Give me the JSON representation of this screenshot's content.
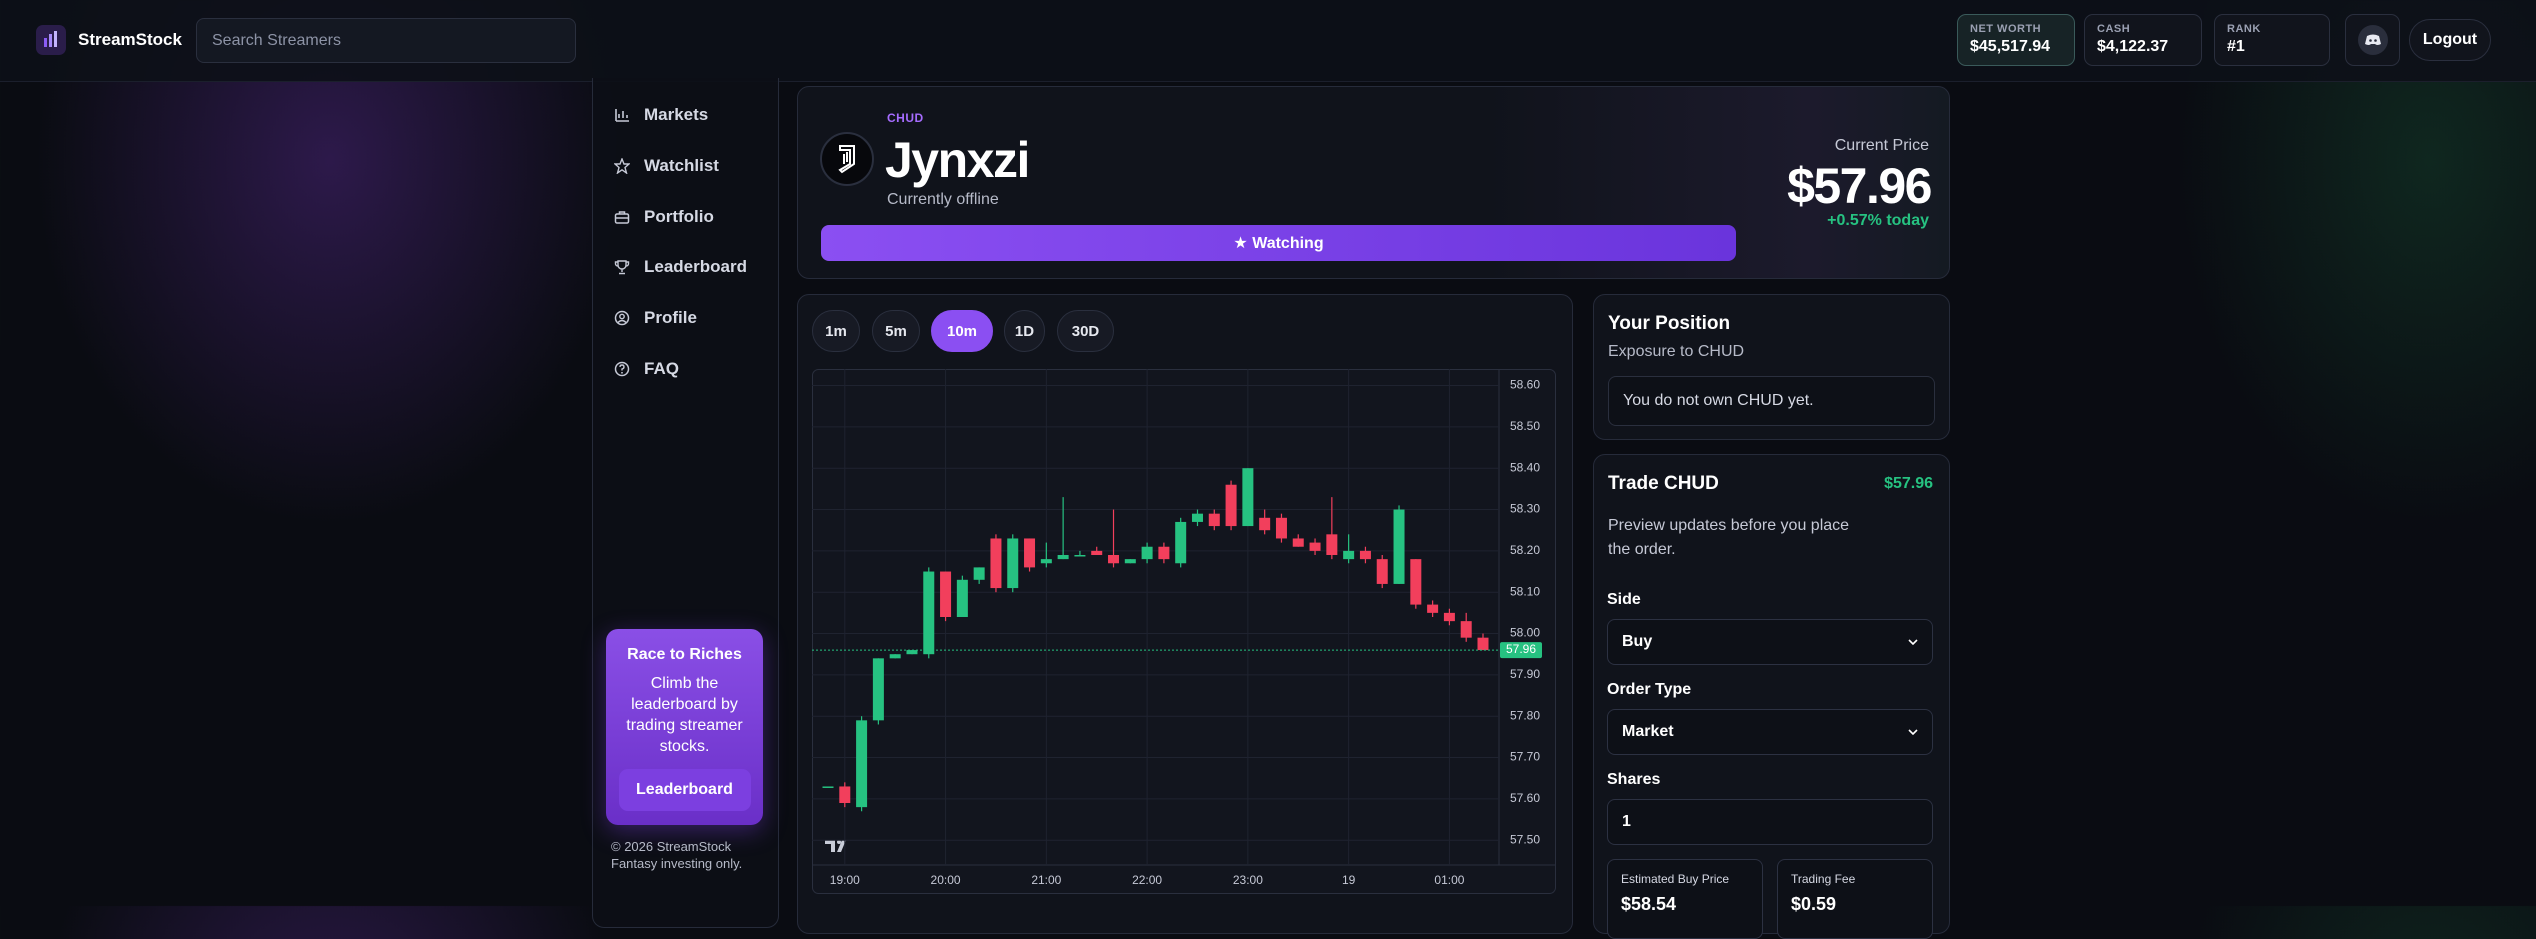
{
  "header": {
    "brand": "StreamStock",
    "search_placeholder": "Search Streamers",
    "stats": [
      {
        "label": "NET WORTH",
        "value": "$45,517.94"
      },
      {
        "label": "CASH",
        "value": "$4,122.37"
      },
      {
        "label": "RANK",
        "value": "#1"
      }
    ],
    "logout": "Logout"
  },
  "sidebar": {
    "nav": [
      "Markets",
      "Watchlist",
      "Portfolio",
      "Leaderboard",
      "Profile",
      "FAQ"
    ],
    "promo": {
      "title": "Race to Riches",
      "text": "Climb the leaderboard by trading streamer stocks.",
      "button": "Leaderboard"
    },
    "footer": [
      "© 2026 StreamStock",
      "Fantasy investing only."
    ]
  },
  "stock": {
    "ticker": "CHUD",
    "name": "Jynxzi",
    "status": "Currently offline",
    "watch_button": "★ Watching",
    "price_label": "Current Price",
    "price": "$57.96",
    "change": "+0.57% today"
  },
  "timeframes": {
    "options": [
      "1m",
      "5m",
      "10m",
      "1D",
      "30D"
    ],
    "active": 2
  },
  "chart_data": {
    "type": "candlestick",
    "categories": [
      null,
      "19:00",
      null,
      null,
      null,
      null,
      null,
      "20:00",
      null,
      null,
      null,
      null,
      null,
      "21:00",
      null,
      null,
      null,
      null,
      null,
      "22:00",
      null,
      null,
      null,
      null,
      null,
      "23:00",
      null,
      null,
      null,
      null,
      null,
      "19",
      null,
      null,
      null,
      null,
      null,
      "01:00",
      null,
      null
    ],
    "open": [
      57.63,
      57.63,
      57.58,
      57.79,
      57.94,
      57.95,
      57.95,
      58.15,
      58.04,
      58.13,
      58.23,
      58.11,
      58.23,
      58.17,
      58.18,
      58.19,
      58.2,
      58.19,
      58.17,
      58.18,
      58.21,
      58.17,
      58.27,
      58.29,
      58.36,
      58.26,
      58.28,
      58.28,
      58.23,
      58.22,
      58.24,
      58.18,
      58.2,
      58.18,
      58.12,
      58.18,
      58.07,
      58.05,
      58.03,
      57.99
    ],
    "high": [
      57.63,
      57.64,
      57.8,
      57.94,
      57.95,
      57.96,
      58.16,
      58.15,
      58.14,
      58.16,
      58.24,
      58.24,
      58.23,
      58.22,
      58.33,
      58.2,
      58.21,
      58.3,
      58.18,
      58.22,
      58.22,
      58.28,
      58.3,
      58.3,
      58.37,
      58.4,
      58.3,
      58.29,
      58.24,
      58.23,
      58.33,
      58.24,
      58.21,
      58.19,
      58.31,
      58.18,
      58.08,
      58.06,
      58.05,
      58.0
    ],
    "low": [
      57.63,
      57.58,
      57.57,
      57.78,
      57.94,
      57.95,
      57.94,
      58.03,
      58.04,
      58.12,
      58.1,
      58.1,
      58.15,
      58.16,
      58.18,
      58.19,
      58.19,
      58.16,
      58.17,
      58.17,
      58.17,
      58.16,
      58.26,
      58.25,
      58.25,
      58.26,
      58.24,
      58.22,
      58.21,
      58.19,
      58.18,
      58.17,
      58.17,
      58.11,
      58.12,
      58.06,
      58.04,
      58.02,
      57.98,
      57.96
    ],
    "close": [
      57.63,
      57.59,
      57.79,
      57.94,
      57.95,
      57.96,
      58.15,
      58.04,
      58.13,
      58.16,
      58.11,
      58.23,
      58.16,
      58.18,
      58.19,
      58.19,
      58.19,
      58.17,
      58.18,
      58.21,
      58.18,
      58.27,
      58.29,
      58.26,
      58.26,
      58.4,
      58.25,
      58.23,
      58.21,
      58.2,
      58.19,
      58.2,
      58.18,
      58.12,
      58.3,
      58.07,
      58.05,
      58.03,
      57.99,
      57.96
    ],
    "up_color": "#26c281",
    "down_color": "#f23f5c",
    "ylim": [
      57.44,
      58.64
    ],
    "yticks": [
      {
        "value": 57.5,
        "label": "57.50"
      },
      {
        "value": 57.6,
        "label": "57.60"
      },
      {
        "value": 57.7,
        "label": "57.70"
      },
      {
        "value": 57.8,
        "label": "57.80"
      },
      {
        "value": 57.9,
        "label": "57.90"
      },
      {
        "value": 58,
        "label": "58.00"
      },
      {
        "value": 58.1,
        "label": "58.10"
      },
      {
        "value": 58.2,
        "label": "58.20"
      },
      {
        "value": 58.3,
        "label": "58.30"
      },
      {
        "value": 58.4,
        "label": "58.40"
      },
      {
        "value": 58.5,
        "label": "58.50"
      },
      {
        "value": 58.6,
        "label": "58.60"
      }
    ],
    "last_price": {
      "value": 57.96,
      "label": "57.96"
    },
    "grid": true
  },
  "position": {
    "title": "Your Position",
    "subtitle": "Exposure to CHUD",
    "empty": "You do not own CHUD yet."
  },
  "trade": {
    "title": "Trade CHUD",
    "price": "$57.96",
    "note": "Preview updates before you place the order.",
    "fields": [
      {
        "label": "Side",
        "value": "Buy"
      },
      {
        "label": "Order Type",
        "value": "Market"
      },
      {
        "label": "Shares",
        "value": "1"
      }
    ],
    "estimates": [
      {
        "label": "Estimated Buy Price",
        "value": "$58.54"
      },
      {
        "label": "Trading Fee",
        "value": "$0.59"
      }
    ]
  }
}
